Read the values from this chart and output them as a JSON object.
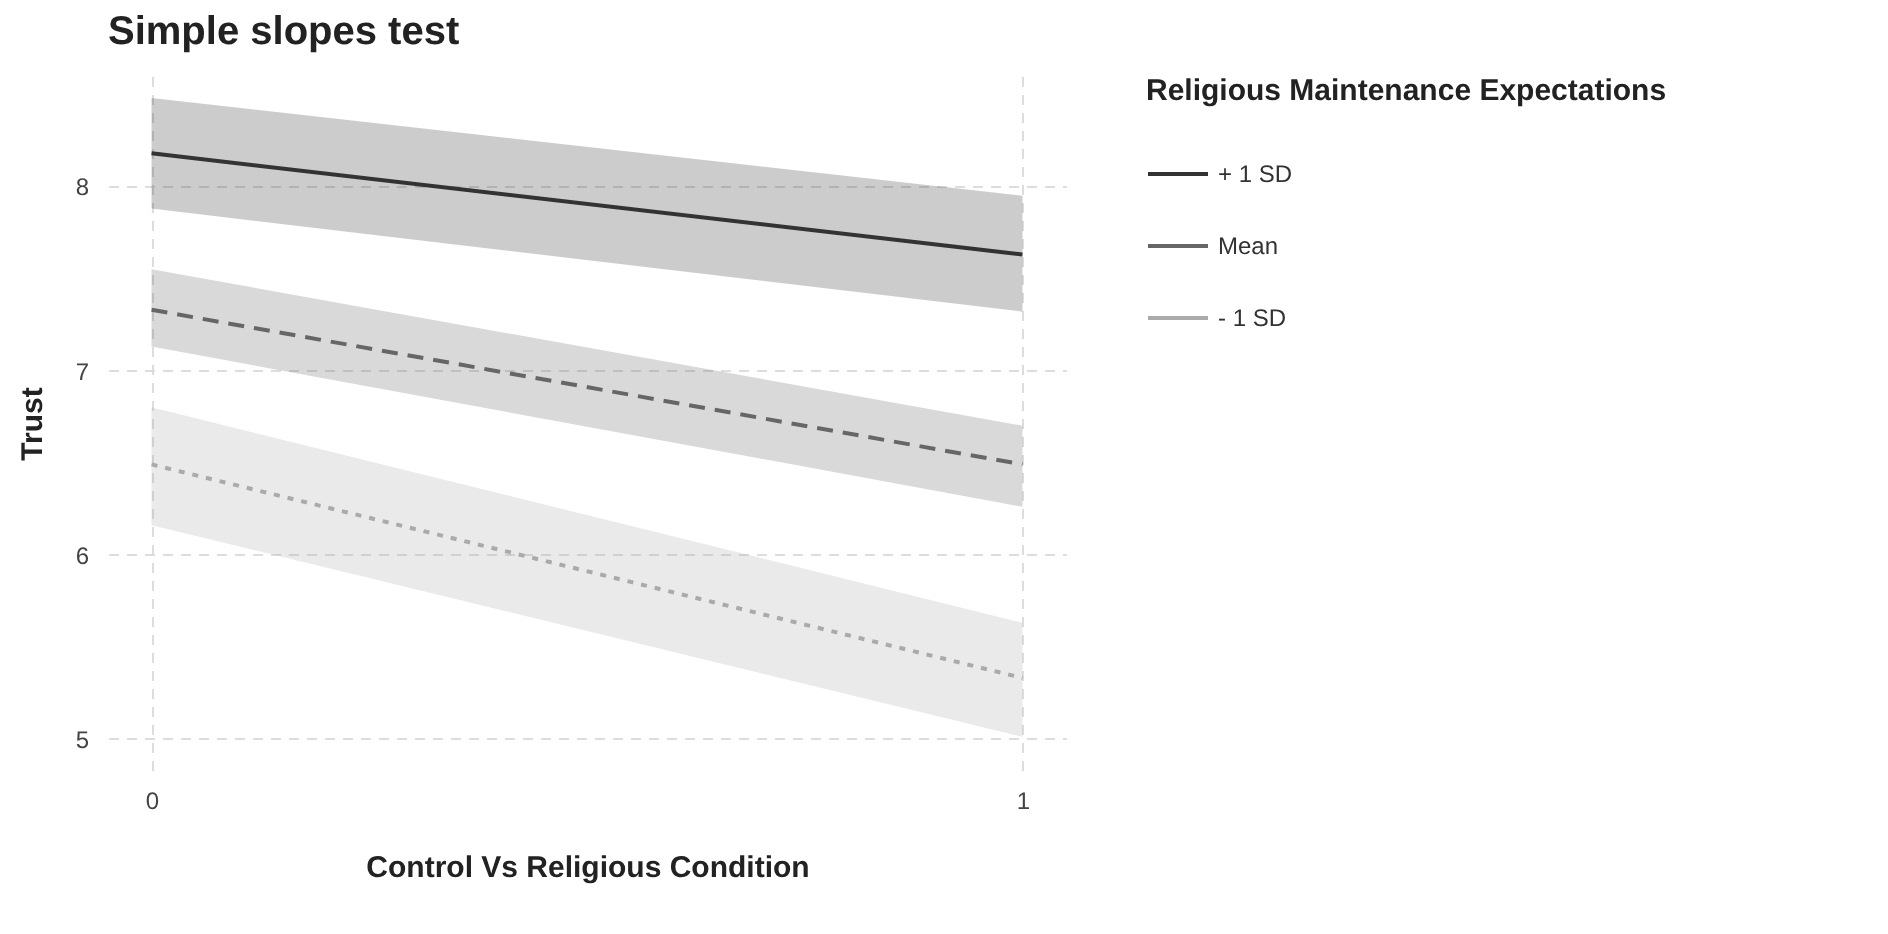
{
  "chart_data": {
    "type": "line",
    "title": "Simple slopes test",
    "xlabel": "Control Vs Religious Condition",
    "ylabel": "Trust",
    "legend_title": "Religious Maintenance Expectations",
    "x": [
      0,
      1
    ],
    "xlim": [
      -0.05,
      1.05
    ],
    "xticks": [
      0,
      1
    ],
    "ylim": [
      4.83,
      8.6
    ],
    "yticks": [
      5,
      6,
      7,
      8
    ],
    "grid": true,
    "legend": "right",
    "series": [
      {
        "name": "+ 1 SD",
        "color": "#333333",
        "line_style": "solid",
        "values": [
          8.18,
          7.63
        ],
        "lower": [
          7.88,
          7.32
        ],
        "upper": [
          8.48,
          7.95
        ]
      },
      {
        "name": "Mean",
        "color": "#666666",
        "line_style": "dashed",
        "values": [
          7.33,
          6.49
        ],
        "lower": [
          7.13,
          6.26
        ],
        "upper": [
          7.55,
          6.7
        ]
      },
      {
        "name": "- 1 SD",
        "color": "#aaaaaa",
        "line_style": "dotted",
        "values": [
          6.49,
          5.33
        ],
        "lower": [
          6.16,
          5.01
        ],
        "upper": [
          6.8,
          5.63
        ]
      }
    ]
  }
}
